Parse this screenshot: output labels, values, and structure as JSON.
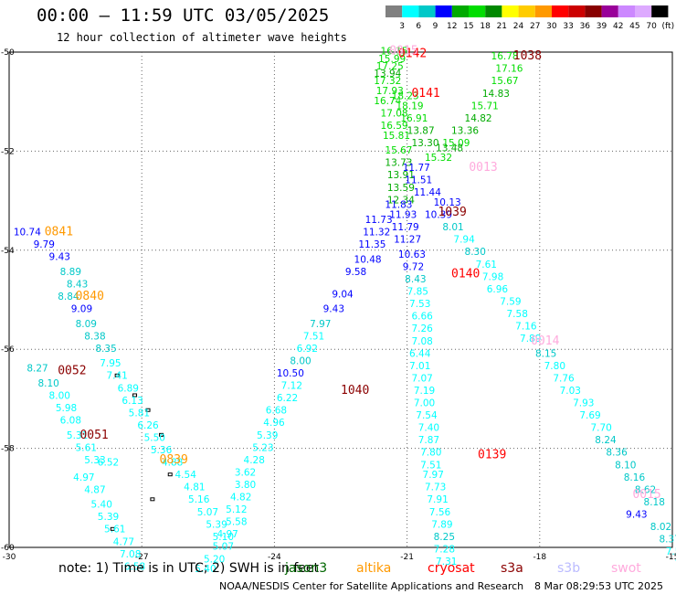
{
  "header": {
    "title": "00:00 – 11:59 UTC 03/05/2025",
    "subtitle": "12 hour collection of altimeter wave heights"
  },
  "colorbar": {
    "labels": [
      "3",
      "6",
      "9",
      "12",
      "15",
      "18",
      "21",
      "24",
      "27",
      "30",
      "33",
      "36",
      "39",
      "42",
      "45",
      "70",
      "(ft)"
    ],
    "colors": [
      "#808080",
      "#00ffff",
      "#00c8c8",
      "#0000ff",
      "#00aa00",
      "#00dd00",
      "#008800",
      "#ffff00",
      "#ffcc00",
      "#ff9900",
      "#ff0000",
      "#cc0000",
      "#880000",
      "#990099",
      "#cc88ff",
      "#ddaaff",
      "#000000"
    ]
  },
  "axes": {
    "lon_ticks": [
      "-30",
      "-27",
      "-24",
      "-21",
      "-18",
      "-15"
    ],
    "lat_ticks": [
      "-50",
      "-52",
      "-54",
      "-56",
      "-58",
      "-60"
    ]
  },
  "legend": {
    "note": "note:  1) Time is in UTC; 2) SWH is in feet",
    "satellites": [
      {
        "name": "jason3",
        "color": "#006600"
      },
      {
        "name": "altika",
        "color": "#ff9900"
      },
      {
        "name": "cryosat",
        "color": "#ff0000"
      },
      {
        "name": "s3a",
        "color": "#8b0000"
      },
      {
        "name": "s3b",
        "color": "#bbbbff"
      },
      {
        "name": "swot",
        "color": "#ffaadd"
      }
    ]
  },
  "footer": {
    "credit": "NOAA/NESDIS Center for Satellite Applications and Research",
    "timestamp": "8 Mar 08:29:53 UTC 2025"
  },
  "time_labels": [
    {
      "text": "0841",
      "lon": -29.2,
      "lat": -53.7,
      "color": "#ff9900"
    },
    {
      "text": "0840",
      "lon": -28.5,
      "lat": -55.0,
      "color": "#ff9900"
    },
    {
      "text": "0052",
      "lon": -28.9,
      "lat": -56.5,
      "color": "#8b0000"
    },
    {
      "text": "0051",
      "lon": -28.4,
      "lat": -57.8,
      "color": "#8b0000"
    },
    {
      "text": "0839",
      "lon": -26.6,
      "lat": -58.3,
      "color": "#ff9900"
    },
    {
      "text": "1040",
      "lon": -22.5,
      "lat": -56.9,
      "color": "#8b0000"
    },
    {
      "text": "0142",
      "lon": -21.2,
      "lat": -50.1,
      "color": "#ff0000"
    },
    {
      "text": "0015",
      "lon": -21.4,
      "lat": -50.05,
      "color": "#ffaadd"
    },
    {
      "text": "0141",
      "lon": -20.9,
      "lat": -50.9,
      "color": "#ff0000"
    },
    {
      "text": "0013",
      "lon": -19.6,
      "lat": -52.4,
      "color": "#ffaadd"
    },
    {
      "text": "1039",
      "lon": -20.3,
      "lat": -53.3,
      "color": "#8b0000"
    },
    {
      "text": "0140",
      "lon": -20.0,
      "lat": -54.55,
      "color": "#ff0000"
    },
    {
      "text": "0139",
      "lon": -19.4,
      "lat": -58.2,
      "color": "#ff0000"
    },
    {
      "text": "1038",
      "lon": -18.6,
      "lat": -50.15,
      "color": "#8b0000"
    },
    {
      "text": "0014",
      "lon": -18.2,
      "lat": -55.9,
      "color": "#ffaadd"
    },
    {
      "text": "0015",
      "lon": -15.9,
      "lat": -59.0,
      "color": "#ffaadd"
    }
  ],
  "tracks": [
    {
      "name": "track-west",
      "points": [
        [
          "10.74",
          -29.9,
          -53.7,
          "#0000ff"
        ],
        [
          "9.79",
          -29.45,
          -53.95,
          "#0000ff"
        ],
        [
          "9.43",
          -29.1,
          -54.2,
          "#0000ff"
        ],
        [
          "8.89",
          -28.85,
          -54.5,
          "#00c8c8"
        ],
        [
          "8.43",
          -28.7,
          -54.75,
          "#00c8c8"
        ],
        [
          "8.84",
          -28.9,
          -55.0,
          "#00c8c8"
        ],
        [
          "9.09",
          -28.6,
          -55.25,
          "#0000ff"
        ],
        [
          "8.09",
          -28.5,
          -55.55,
          "#00c8c8"
        ],
        [
          "8.38",
          -28.3,
          -55.8,
          "#00c8c8"
        ],
        [
          "8.35",
          -28.05,
          -56.05,
          "#00c8c8"
        ],
        [
          "7.95",
          -27.95,
          -56.35,
          "#00ffff"
        ],
        [
          "7.41",
          -27.8,
          -56.6,
          "#00ffff"
        ],
        [
          "6.89",
          -27.55,
          -56.85,
          "#00ffff"
        ],
        [
          "6.13",
          -27.45,
          -57.1,
          "#00ffff"
        ],
        [
          "5.81",
          -27.3,
          -57.35,
          "#00ffff"
        ],
        [
          "6.26",
          -27.1,
          -57.6,
          "#00ffff"
        ],
        [
          "5.50",
          -26.95,
          -57.85,
          "#00ffff"
        ],
        [
          "5.36",
          -26.8,
          -58.1,
          "#00ffff"
        ],
        [
          "4.88",
          -26.55,
          -58.35,
          "#00ffff"
        ],
        [
          "4.54",
          -26.25,
          -58.6,
          "#00ffff"
        ],
        [
          "4.81",
          -26.05,
          -58.85,
          "#00ffff"
        ],
        [
          "5.16",
          -25.95,
          -59.1,
          "#00ffff"
        ],
        [
          "5.07",
          -25.75,
          -59.35,
          "#00ffff"
        ],
        [
          "5.39",
          -25.55,
          -59.6,
          "#00ffff"
        ],
        [
          "5.10",
          -25.4,
          -59.85,
          "#00ffff"
        ]
      ]
    },
    {
      "name": "track-s3a-west",
      "points": [
        [
          "8.27",
          -29.6,
          -56.45,
          "#00c8c8"
        ],
        [
          "8.10",
          -29.35,
          -56.75,
          "#00c8c8"
        ],
        [
          "8.00",
          -29.1,
          -57.0,
          "#00ffff"
        ],
        [
          "5.98",
          -28.95,
          -57.25,
          "#00ffff"
        ],
        [
          "6.08",
          -28.85,
          -57.5,
          "#00ffff"
        ],
        [
          "5.31",
          -28.7,
          -57.8,
          "#00ffff"
        ],
        [
          "5.61",
          -28.5,
          -58.05,
          "#00ffff"
        ],
        [
          "5.33",
          -28.3,
          -58.3,
          "#00ffff"
        ],
        [
          "6.52",
          -28.0,
          -58.35,
          "#00ffff"
        ],
        [
          "4.97",
          -28.55,
          -58.65,
          "#00ffff"
        ],
        [
          "4.87",
          -28.3,
          -58.9,
          "#00ffff"
        ],
        [
          "5.40",
          -28.15,
          -59.2,
          "#00ffff"
        ],
        [
          "5.39",
          -28.0,
          -59.45,
          "#00ffff"
        ],
        [
          "5.61",
          -27.85,
          -59.7,
          "#00ffff"
        ],
        [
          "4.77",
          -27.65,
          -59.95,
          "#00ffff"
        ],
        [
          "7.08",
          -27.5,
          -60.2,
          "#00ffff"
        ],
        [
          "6.58",
          -27.4,
          -60.45,
          "#00ffff"
        ]
      ]
    },
    {
      "name": "track-s3a-east",
      "points": [
        [
          "11.73",
          -21.95,
          -53.45,
          "#0000ff"
        ],
        [
          "11.32",
          -22.0,
          -53.7,
          "#0000ff"
        ],
        [
          "11.35",
          -22.1,
          -53.95,
          "#0000ff"
        ],
        [
          "10.48",
          -22.2,
          -54.25,
          "#0000ff"
        ],
        [
          "9.58",
          -22.4,
          -54.5,
          "#0000ff"
        ],
        [
          "9.04",
          -22.7,
          -54.95,
          "#0000ff"
        ],
        [
          "9.43",
          -22.9,
          -55.25,
          "#0000ff"
        ],
        [
          "7.97",
          -23.2,
          -55.55,
          "#00c8c8"
        ],
        [
          "7.51",
          -23.35,
          -55.8,
          "#00ffff"
        ],
        [
          "6.92",
          -23.5,
          -56.05,
          "#00ffff"
        ],
        [
          "8.00",
          -23.65,
          -56.3,
          "#00c8c8"
        ],
        [
          "10.50",
          -23.95,
          -56.55,
          "#0000ff"
        ],
        [
          "7.12",
          -23.85,
          -56.8,
          "#00ffff"
        ],
        [
          "6.22",
          -23.95,
          -57.05,
          "#00ffff"
        ],
        [
          "6.68",
          -24.2,
          -57.3,
          "#00ffff"
        ],
        [
          "4.96",
          -24.25,
          -57.55,
          "#00ffff"
        ],
        [
          "5.39",
          -24.4,
          -57.8,
          "#00ffff"
        ],
        [
          "5.23",
          -24.5,
          -58.05,
          "#00ffff"
        ],
        [
          "4.28",
          -24.7,
          -58.3,
          "#00ffff"
        ],
        [
          "3.62",
          -24.9,
          -58.55,
          "#00ffff"
        ],
        [
          "3.80",
          -24.9,
          -58.8,
          "#00ffff"
        ],
        [
          "4.82",
          -25.0,
          -59.05,
          "#00ffff"
        ],
        [
          "5.12",
          -25.1,
          -59.3,
          "#00ffff"
        ],
        [
          "5.58",
          -25.1,
          -59.55,
          "#00ffff"
        ],
        [
          "4.97",
          -25.3,
          -59.8,
          "#00ffff"
        ],
        [
          "5.07",
          -25.4,
          -60.05,
          "#00ffff"
        ],
        [
          "5.20",
          -25.6,
          -60.3,
          "#00ffff"
        ],
        [
          "5.40",
          -25.8,
          -60.5,
          "#00ffff"
        ]
      ]
    },
    {
      "name": "track-cryosat",
      "points": [
        [
          "16.15",
          -21.6,
          -50.05,
          "#00dd00"
        ],
        [
          "15.99",
          -21.65,
          -50.2,
          "#00dd00"
        ],
        [
          "17.25",
          -21.7,
          -50.35,
          "#00dd00"
        ],
        [
          "13.94",
          -21.75,
          -50.5,
          "#00aa00"
        ],
        [
          "17.32",
          -21.75,
          -50.65,
          "#00dd00"
        ],
        [
          "17.93",
          -21.7,
          -50.85,
          "#00dd00"
        ],
        [
          "16.74",
          -21.75,
          -51.05,
          "#00dd00"
        ],
        [
          "17.08",
          -21.6,
          -51.3,
          "#00dd00"
        ],
        [
          "16.59",
          -21.6,
          -51.55,
          "#00dd00"
        ],
        [
          "15.81",
          -21.55,
          -51.75,
          "#00dd00"
        ],
        [
          "15.67",
          -21.5,
          -52.05,
          "#00dd00"
        ],
        [
          "13.73",
          -21.5,
          -52.3,
          "#00aa00"
        ],
        [
          "13.91",
          -21.45,
          -52.55,
          "#00aa00"
        ],
        [
          "13.59",
          -21.45,
          -52.8,
          "#00aa00"
        ],
        [
          "12.34",
          -21.45,
          -53.05,
          "#00aa00"
        ],
        [
          "11.93",
          -21.4,
          -53.35,
          "#0000ff"
        ],
        [
          "11.79",
          -21.35,
          -53.6,
          "#0000ff"
        ],
        [
          "11.27",
          -21.3,
          -53.85,
          "#0000ff"
        ],
        [
          "10.63",
          -21.2,
          -54.15,
          "#0000ff"
        ],
        [
          "9.72",
          -21.1,
          -54.4,
          "#0000ff"
        ],
        [
          "8.43",
          -21.05,
          -54.65,
          "#00c8c8"
        ],
        [
          "7.85",
          -21.0,
          -54.9,
          "#00ffff"
        ],
        [
          "7.53",
          -20.95,
          -55.15,
          "#00ffff"
        ],
        [
          "6.66",
          -20.9,
          -55.4,
          "#00ffff"
        ],
        [
          "7.26",
          -20.9,
          -55.65,
          "#00ffff"
        ],
        [
          "7.08",
          -20.9,
          -55.9,
          "#00ffff"
        ],
        [
          "6.44",
          -20.95,
          -56.15,
          "#00ffff"
        ],
        [
          "7.01",
          -20.95,
          -56.4,
          "#00ffff"
        ],
        [
          "7.07",
          -20.9,
          -56.65,
          "#00ffff"
        ],
        [
          "7.19",
          -20.85,
          -56.9,
          "#00ffff"
        ],
        [
          "7.00",
          -20.85,
          -57.15,
          "#00ffff"
        ],
        [
          "7.54",
          -20.8,
          -57.4,
          "#00ffff"
        ],
        [
          "7.40",
          -20.75,
          -57.65,
          "#00ffff"
        ],
        [
          "7.87",
          -20.75,
          -57.9,
          "#00ffff"
        ],
        [
          "7.80",
          -20.7,
          -58.15,
          "#00ffff"
        ],
        [
          "7.51",
          -20.7,
          -58.4,
          "#00ffff"
        ],
        [
          "7.97",
          -20.65,
          -58.6,
          "#00ffff"
        ],
        [
          "7.73",
          -20.6,
          -58.85,
          "#00ffff"
        ],
        [
          "7.91",
          -20.55,
          -59.1,
          "#00ffff"
        ],
        [
          "7.56",
          -20.5,
          -59.35,
          "#00ffff"
        ],
        [
          "7.89",
          -20.45,
          -59.6,
          "#00ffff"
        ],
        [
          "8.25",
          -20.4,
          -59.85,
          "#00c8c8"
        ],
        [
          "7.28",
          -20.4,
          -60.1,
          "#00ffff"
        ],
        [
          "7.31",
          -20.35,
          -60.35,
          "#00ffff"
        ]
      ]
    },
    {
      "name": "track-cryosat-green",
      "points": [
        [
          "18.23",
          -21.35,
          -50.95,
          "#00dd00"
        ],
        [
          "18.19",
          -21.25,
          -51.15,
          "#00dd00"
        ],
        [
          "16.91",
          -21.15,
          -51.4,
          "#00dd00"
        ],
        [
          "13.87",
          -21.0,
          -51.65,
          "#00aa00"
        ],
        [
          "13.30",
          -20.9,
          -51.9,
          "#00aa00"
        ],
        [
          "15.32",
          -20.6,
          -52.2,
          "#00dd00"
        ]
      ]
    },
    {
      "name": "track-east",
      "points": [
        [
          "16.78",
          -19.1,
          -50.15,
          "#00dd00"
        ],
        [
          "17.16",
          -19.0,
          -50.4,
          "#00dd00"
        ],
        [
          "15.67",
          -19.1,
          -50.65,
          "#00dd00"
        ],
        [
          "14.83",
          -19.3,
          -50.9,
          "#00aa00"
        ],
        [
          "15.71",
          -19.55,
          -51.15,
          "#00dd00"
        ],
        [
          "14.82",
          -19.7,
          -51.4,
          "#00aa00"
        ],
        [
          "13.36",
          -20.0,
          -51.65,
          "#00aa00"
        ],
        [
          "15.09",
          -20.2,
          -51.9,
          "#00dd00"
        ],
        [
          "13.48",
          -20.35,
          -52.0,
          "#00aa00"
        ],
        [
          "11.77",
          -21.1,
          -52.4,
          "#0000ff"
        ],
        [
          "11.51",
          -21.05,
          -52.65,
          "#0000ff"
        ],
        [
          "11.44",
          -20.85,
          -52.9,
          "#0000ff"
        ],
        [
          "11.83",
          -21.5,
          -53.15,
          "#0000ff"
        ],
        [
          "10.13",
          -20.4,
          -53.1,
          "#0000ff"
        ],
        [
          "10.39",
          -20.6,
          -53.35,
          "#0000ff"
        ],
        [
          "8.01",
          -20.2,
          -53.6,
          "#00c8c8"
        ],
        [
          "7.94",
          -19.95,
          -53.85,
          "#00ffff"
        ],
        [
          "8.30",
          -19.7,
          -54.1,
          "#00c8c8"
        ],
        [
          "7.61",
          -19.45,
          -54.35,
          "#00ffff"
        ],
        [
          "7.98",
          -19.3,
          -54.6,
          "#00ffff"
        ],
        [
          "6.96",
          -19.2,
          -54.85,
          "#00ffff"
        ],
        [
          "7.59",
          -18.9,
          -55.1,
          "#00ffff"
        ],
        [
          "7.58",
          -18.75,
          -55.35,
          "#00ffff"
        ],
        [
          "7.16",
          -18.55,
          -55.6,
          "#00ffff"
        ],
        [
          "7.89",
          -18.45,
          -55.85,
          "#00ffff"
        ],
        [
          "8.15",
          -18.1,
          -56.15,
          "#00c8c8"
        ],
        [
          "7.80",
          -17.9,
          -56.4,
          "#00ffff"
        ],
        [
          "7.76",
          -17.7,
          -56.65,
          "#00ffff"
        ],
        [
          "7.03",
          -17.55,
          -56.9,
          "#00ffff"
        ],
        [
          "7.93",
          -17.25,
          -57.15,
          "#00ffff"
        ],
        [
          "7.69",
          -17.1,
          -57.4,
          "#00ffff"
        ],
        [
          "7.70",
          -16.85,
          -57.65,
          "#00ffff"
        ],
        [
          "8.24",
          -16.75,
          -57.9,
          "#00c8c8"
        ],
        [
          "8.36",
          -16.5,
          -58.15,
          "#00c8c8"
        ],
        [
          "8.10",
          -16.3,
          -58.4,
          "#00c8c8"
        ],
        [
          "8.16",
          -16.1,
          -58.65,
          "#00c8c8"
        ],
        [
          "8.62",
          -15.85,
          -58.9,
          "#00c8c8"
        ],
        [
          "8.18",
          -15.65,
          -59.15,
          "#00c8c8"
        ],
        [
          "9.43",
          -16.05,
          -59.4,
          "#0000ff"
        ],
        [
          "8.02",
          -15.5,
          -59.65,
          "#00c8c8"
        ],
        [
          "8.37",
          -15.3,
          -59.9,
          "#00c8c8"
        ],
        [
          "7.59",
          -15.15,
          -60.15,
          "#00ffff"
        ],
        [
          "7.87",
          -14.95,
          -60.4,
          "#00ffff"
        ]
      ]
    }
  ]
}
